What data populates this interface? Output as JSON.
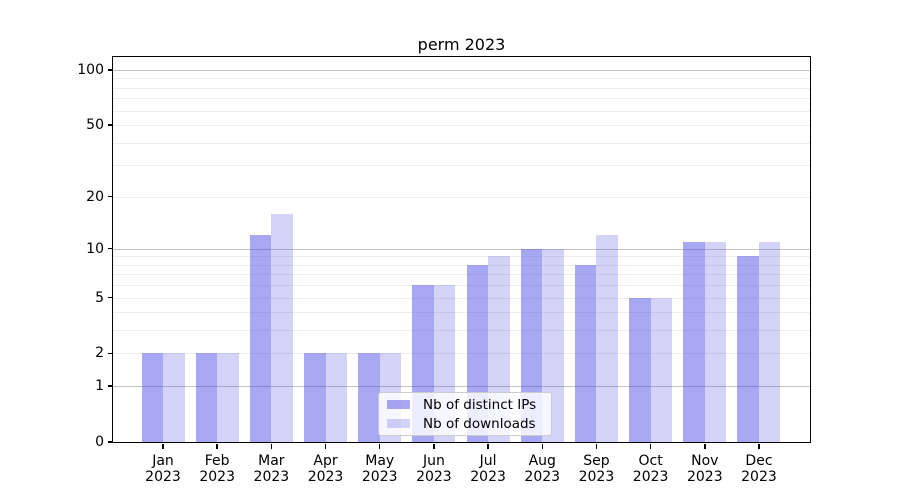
{
  "title": "perm 2023",
  "chart_data": {
    "type": "bar",
    "title": "perm 2023",
    "categories": [
      "Jan 2023",
      "Feb 2023",
      "Mar 2023",
      "Apr 2023",
      "May 2023",
      "Jun 2023",
      "Jul 2023",
      "Aug 2023",
      "Sep 2023",
      "Oct 2023",
      "Nov 2023",
      "Dec 2023"
    ],
    "series": [
      {
        "name": "Nb of distinct IPs",
        "color": "rgba(79,79,229,0.5)",
        "values": [
          2,
          2,
          12,
          2,
          2,
          6,
          8,
          10,
          8,
          5,
          11,
          9
        ]
      },
      {
        "name": "Nb of downloads",
        "color": "rgba(79,79,229,0.25)",
        "values": [
          2,
          2,
          16,
          2,
          2,
          6,
          9,
          10,
          12,
          5,
          11,
          11
        ]
      }
    ],
    "yscale": "log1p",
    "ylim": [
      0,
      100
    ],
    "ytick_labels": [
      0,
      1,
      2,
      5,
      10,
      20,
      50,
      100
    ],
    "ygrid_major": [
      1,
      10,
      100
    ],
    "ygrid_minor": [
      2,
      3,
      4,
      5,
      6,
      7,
      8,
      9,
      20,
      30,
      40,
      50,
      60,
      70,
      80,
      90
    ],
    "grid": "horizontal",
    "legend_position": "lower center"
  },
  "legend": {
    "items": [
      {
        "label": "Nb of distinct IPs",
        "color": "rgba(79,79,229,0.5)"
      },
      {
        "label": "Nb of downloads",
        "color": "rgba(79,79,229,0.25)"
      }
    ]
  },
  "colors": {
    "background": "#ffffff",
    "axis": "#000000",
    "grid_major": "#c3c3c3",
    "grid_minor": "#ededed",
    "legend_border": "#cccccc"
  }
}
